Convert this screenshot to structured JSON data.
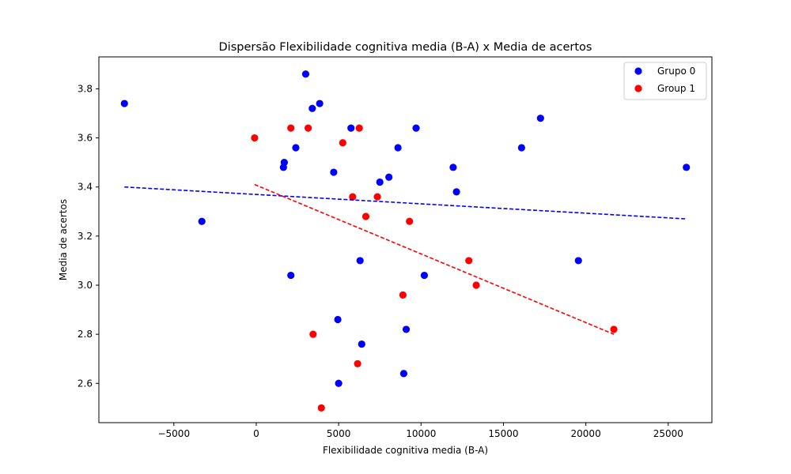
{
  "chart_data": {
    "type": "scatter",
    "title": "Dispersão Flexibilidade cognitiva media (B-A) x Media de acertos",
    "xlabel": "Flexibilidade cognitiva media (B-A)",
    "ylabel": "Media de acertos",
    "xlim": [
      -9550,
      27650
    ],
    "ylim": [
      2.44,
      3.93
    ],
    "xticks": [
      -5000,
      0,
      5000,
      10000,
      15000,
      20000,
      25000
    ],
    "xtick_labels": [
      "−5000",
      "0",
      "5000",
      "10000",
      "15000",
      "20000",
      "25000"
    ],
    "yticks": [
      2.6,
      2.8,
      3.0,
      3.2,
      3.4,
      3.6,
      3.8
    ],
    "ytick_labels": [
      "2.6",
      "2.8",
      "3.0",
      "3.2",
      "3.4",
      "3.6",
      "3.8"
    ],
    "grid": false,
    "legend_position": "top-right",
    "series": [
      {
        "name": "Grupo 0",
        "color": "#0000ff",
        "points": [
          [
            -8000,
            3.74
          ],
          [
            3000,
            3.86
          ],
          [
            3400,
            3.72
          ],
          [
            3850,
            3.74
          ],
          [
            2400,
            3.56
          ],
          [
            1700,
            3.5
          ],
          [
            1650,
            3.48
          ],
          [
            5750,
            3.64
          ],
          [
            9700,
            3.64
          ],
          [
            8600,
            3.56
          ],
          [
            17250,
            3.68
          ],
          [
            16100,
            3.56
          ],
          [
            26100,
            3.48
          ],
          [
            11950,
            3.48
          ],
          [
            12150,
            3.38
          ],
          [
            4700,
            3.46
          ],
          [
            7500,
            3.42
          ],
          [
            8050,
            3.44
          ],
          [
            -3300,
            3.26
          ],
          [
            6300,
            3.1
          ],
          [
            19550,
            3.1
          ],
          [
            2100,
            3.04
          ],
          [
            10200,
            3.04
          ],
          [
            4950,
            2.86
          ],
          [
            9100,
            2.82
          ],
          [
            6400,
            2.76
          ],
          [
            8950,
            2.64
          ],
          [
            5000,
            2.6
          ]
        ],
        "trend": {
          "x": [
            -8000,
            26100
          ],
          "y": [
            3.4,
            3.27
          ]
        }
      },
      {
        "name": "Group 1",
        "color": "#ff0000",
        "points": [
          [
            -100,
            3.6
          ],
          [
            2100,
            3.64
          ],
          [
            3150,
            3.64
          ],
          [
            6250,
            3.64
          ],
          [
            5250,
            3.58
          ],
          [
            5850,
            3.36
          ],
          [
            7350,
            3.36
          ],
          [
            6650,
            3.28
          ],
          [
            9300,
            3.26
          ],
          [
            12900,
            3.1
          ],
          [
            13350,
            3.0
          ],
          [
            8900,
            2.96
          ],
          [
            21700,
            2.82
          ],
          [
            3450,
            2.8
          ],
          [
            6150,
            2.68
          ],
          [
            3950,
            2.5
          ]
        ],
        "trend": {
          "x": [
            -100,
            21700
          ],
          "y": [
            3.41,
            2.8
          ]
        }
      }
    ]
  }
}
